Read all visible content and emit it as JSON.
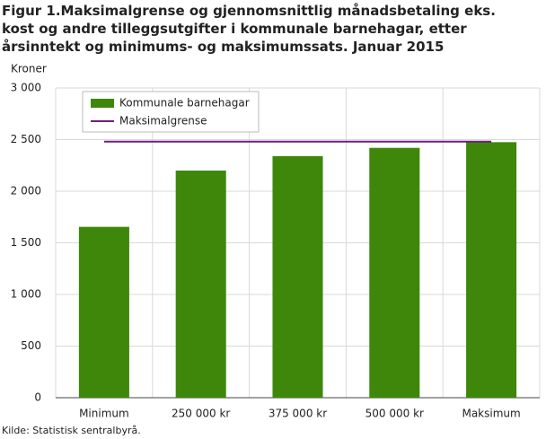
{
  "chart_data": {
    "type": "bar",
    "title": "Figur 1.Maksimalgrense og gjennomsnittlig månadsbetaling eks. kost og andre tilleggsutgifter i kommunale barnehagar, etter årsinntekt og minimums- og maksimumssats. Januar 2015",
    "y_label": "Kroner",
    "source": "Kilde: Statistisk sentralbyrå.",
    "categories": [
      "Minimum",
      "250 000 kr",
      "375 000 kr",
      "500 000 kr",
      "Maksimum"
    ],
    "series": [
      {
        "name": "Kommunale barnehagar",
        "type": "bar",
        "color": "#3e870b",
        "values": [
          1655,
          2200,
          2340,
          2420,
          2475
        ]
      },
      {
        "name": "Maksimalgrense",
        "type": "line",
        "color": "#6b1f7c",
        "values": [
          2480,
          2480,
          2480,
          2480,
          2480
        ]
      }
    ],
    "ylim": [
      0,
      3000
    ],
    "yticks": [
      0,
      500,
      {
        "value": 1000,
        "label": "1 000"
      },
      {
        "value": 1500,
        "label": "1 500"
      },
      {
        "value": 2000,
        "label": "2 000"
      },
      {
        "value": 2500,
        "label": "2 500"
      },
      {
        "value": 3000,
        "label": "3 000"
      }
    ],
    "grid": true
  }
}
